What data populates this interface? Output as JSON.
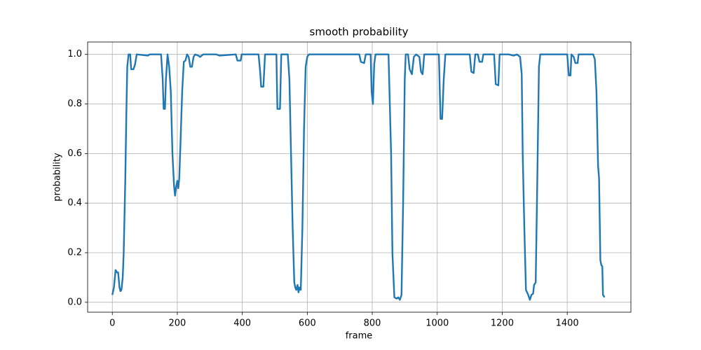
{
  "chart_data": {
    "type": "line",
    "title": "smooth probability",
    "x_label": "frame",
    "y_label": "probability",
    "x": [
      0,
      5,
      10,
      15,
      18,
      22,
      25,
      28,
      32,
      35,
      40,
      43,
      46,
      50,
      55,
      58,
      65,
      70,
      75,
      110,
      115,
      150,
      155,
      158,
      162,
      165,
      170,
      175,
      180,
      185,
      190,
      193,
      197,
      200,
      203,
      206,
      210,
      215,
      220,
      225,
      230,
      235,
      240,
      245,
      250,
      255,
      265,
      270,
      280,
      320,
      330,
      380,
      385,
      395,
      398,
      450,
      455,
      458,
      465,
      470,
      505,
      508,
      516,
      520,
      540,
      545,
      550,
      555,
      560,
      563,
      566,
      570,
      573,
      576,
      580,
      585,
      590,
      595,
      600,
      605,
      760,
      765,
      775,
      780,
      795,
      798,
      802,
      806,
      810,
      850,
      858,
      862,
      868,
      875,
      880,
      885,
      890,
      895,
      900,
      903,
      910,
      915,
      922,
      928,
      935,
      945,
      950,
      955,
      960,
      1000,
      1005,
      1010,
      1015,
      1020,
      1025,
      1100,
      1105,
      1112,
      1117,
      1125,
      1130,
      1138,
      1142,
      1175,
      1180,
      1188,
      1192,
      1220,
      1235,
      1245,
      1255,
      1260,
      1263,
      1268,
      1273,
      1280,
      1285,
      1290,
      1295,
      1298,
      1303,
      1308,
      1313,
      1317,
      1400,
      1405,
      1410,
      1413,
      1420,
      1425,
      1432,
      1435,
      1480,
      1485,
      1490,
      1495,
      1498,
      1502,
      1505,
      1508,
      1510,
      1515
    ],
    "series": [
      {
        "name": "probability",
        "color": "#1f77b4",
        "values": [
          0.03,
          0.06,
          0.13,
          0.12,
          0.12,
          0.06,
          0.045,
          0.05,
          0.1,
          0.2,
          0.5,
          0.75,
          0.95,
          1.0,
          1.0,
          0.94,
          0.94,
          0.96,
          1.0,
          0.995,
          1.0,
          1.0,
          0.9,
          0.78,
          0.78,
          0.9,
          1.0,
          0.95,
          0.85,
          0.6,
          0.47,
          0.43,
          0.47,
          0.49,
          0.46,
          0.5,
          0.65,
          0.85,
          0.97,
          0.975,
          1.0,
          0.99,
          0.95,
          0.95,
          0.99,
          1.0,
          0.995,
          0.99,
          1.0,
          1.0,
          0.995,
          1.0,
          0.975,
          0.975,
          1.0,
          1.0,
          0.93,
          0.87,
          0.87,
          1.0,
          1.0,
          0.78,
          0.78,
          1.0,
          1.0,
          0.9,
          0.6,
          0.3,
          0.08,
          0.06,
          0.05,
          0.07,
          0.04,
          0.06,
          0.05,
          0.3,
          0.7,
          0.95,
          0.99,
          1.0,
          1.0,
          0.97,
          0.965,
          1.0,
          1.0,
          0.85,
          0.8,
          0.96,
          1.0,
          1.0,
          0.6,
          0.2,
          0.02,
          0.015,
          0.02,
          0.01,
          0.03,
          0.4,
          0.9,
          1.0,
          1.0,
          0.94,
          0.92,
          0.99,
          1.0,
          0.99,
          0.93,
          0.92,
          1.0,
          1.0,
          1.0,
          0.74,
          0.74,
          0.9,
          1.0,
          1.0,
          0.93,
          0.925,
          1.0,
          1.0,
          0.97,
          0.97,
          1.0,
          1.0,
          0.88,
          0.875,
          1.0,
          1.0,
          0.995,
          1.0,
          0.99,
          0.92,
          0.6,
          0.3,
          0.05,
          0.03,
          0.01,
          0.03,
          0.035,
          0.07,
          0.08,
          0.5,
          0.95,
          1.0,
          1.0,
          0.915,
          0.915,
          1.0,
          0.99,
          0.965,
          0.965,
          1.0,
          1.0,
          0.98,
          0.85,
          0.55,
          0.5,
          0.17,
          0.15,
          0.145,
          0.03,
          0.02
        ]
      }
    ],
    "xlim": [
      -76,
      1596
    ],
    "ylim": [
      -0.04,
      1.05
    ],
    "xticks": [
      0,
      200,
      400,
      600,
      800,
      1000,
      1200,
      1400
    ],
    "yticks": [
      {
        "value": 0,
        "label": "0.0"
      },
      {
        "value": 0.2,
        "label": "0.2"
      },
      {
        "value": 0.4,
        "label": "0.4"
      },
      {
        "value": 0.6,
        "label": "0.6"
      },
      {
        "value": 0.8,
        "label": "0.8"
      },
      {
        "value": 1,
        "label": "1.0"
      }
    ],
    "grid": true
  }
}
